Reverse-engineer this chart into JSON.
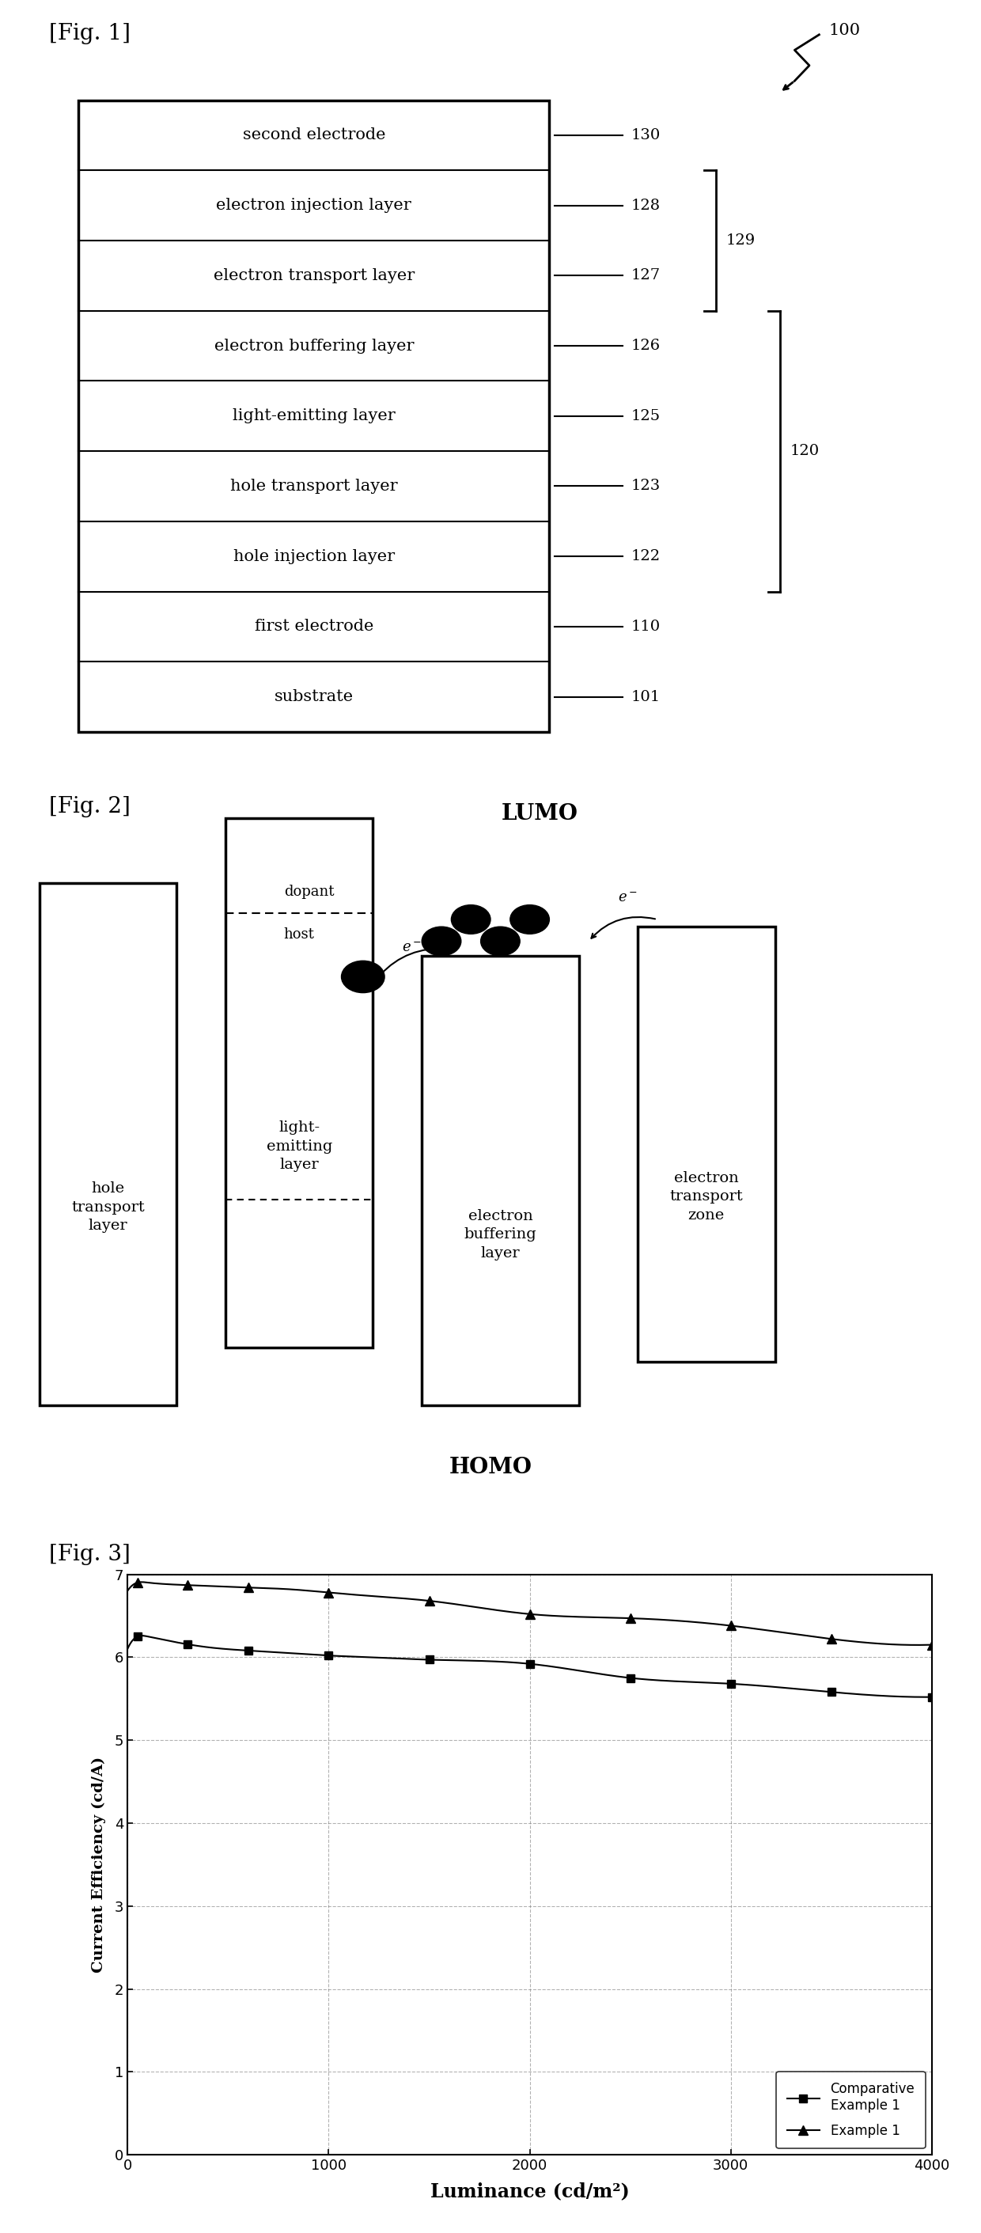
{
  "fig1_label": "[Fig. 1]",
  "fig2_label": "[Fig. 2]",
  "fig3_label": "[Fig. 3]",
  "fig1_layers_top_to_bottom": [
    "second electrode",
    "electron injection layer",
    "electron transport layer",
    "electron buffering layer",
    "light-emitting layer",
    "hole transport layer",
    "hole injection layer",
    "first electrode",
    "substrate"
  ],
  "fig1_labels_top_to_bottom": [
    "130",
    "128",
    "127",
    "126",
    "125",
    "123",
    "122",
    "110",
    "101"
  ],
  "fig1_bracket_129": "129",
  "fig1_bracket_120": "120",
  "fig1_device_label": "100",
  "fig3_comparative_x": [
    0,
    50,
    100,
    200,
    400,
    600,
    800,
    1000,
    1200,
    1500,
    2000,
    2500,
    3000,
    3500,
    4000
  ],
  "fig3_comparative_y": [
    6.1,
    6.25,
    6.25,
    6.2,
    6.12,
    6.08,
    6.05,
    6.02,
    6.0,
    5.97,
    5.92,
    5.75,
    5.68,
    5.58,
    5.52
  ],
  "fig3_example1_x": [
    0,
    50,
    100,
    200,
    400,
    600,
    800,
    1000,
    1200,
    1500,
    2000,
    2500,
    3000,
    3500,
    4000
  ],
  "fig3_example1_y": [
    6.8,
    6.9,
    6.9,
    6.88,
    6.86,
    6.84,
    6.82,
    6.78,
    6.74,
    6.68,
    6.52,
    6.47,
    6.38,
    6.22,
    6.15
  ],
  "fig3_xlabel": "Luminance (cd/m²)",
  "fig3_ylabel": "Current Efficiency (cd/A)",
  "fig3_xlim": [
    0,
    4000
  ],
  "fig3_ylim": [
    0,
    7
  ],
  "fig3_xticks": [
    0,
    1000,
    2000,
    3000,
    4000
  ],
  "fig3_yticks": [
    0,
    1,
    2,
    3,
    4,
    5,
    6,
    7
  ],
  "fig3_legend1": "Comparative\nExample 1",
  "fig3_legend2": "Example 1",
  "background_color": "#ffffff",
  "line_color": "#000000"
}
